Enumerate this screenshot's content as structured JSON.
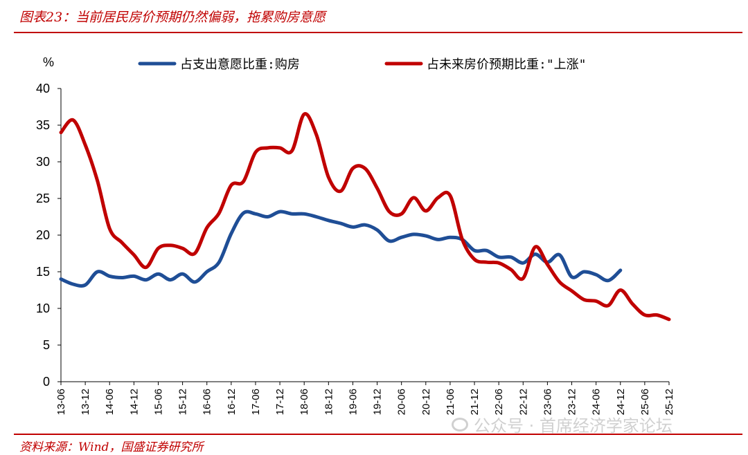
{
  "header": {
    "title": "图表23：当前居民房价预期仍然偏弱，拖累购房意愿"
  },
  "footer": {
    "source": "资料来源：Wind，国盛证券研究所"
  },
  "watermark": {
    "text": "公众号 · 首席经济学家论坛"
  },
  "chart_data": {
    "type": "line",
    "title": "图表23：当前居民房价预期仍然偏弱，拖累购房意愿",
    "ylabel": "%",
    "ylim": [
      0,
      40
    ],
    "yticks": [
      0,
      5,
      10,
      15,
      20,
      25,
      30,
      35,
      40
    ],
    "x_tick_labels": [
      "13-06",
      "13-12",
      "14-06",
      "14-12",
      "15-06",
      "15-12",
      "16-06",
      "16-12",
      "17-06",
      "17-12",
      "18-06",
      "18-12",
      "19-06",
      "19-12",
      "20-06",
      "20-12",
      "21-06",
      "21-12",
      "22-06",
      "22-12",
      "23-06",
      "23-12",
      "24-06",
      "24-12",
      "25-06",
      "25-12"
    ],
    "x_range": [
      0,
      50
    ],
    "legend_position": "top",
    "colors": {
      "blue": "#1f4e96",
      "red": "#c00000"
    },
    "series": [
      {
        "name": "占支出意愿比重:购房",
        "color": "#1f4e96",
        "x": [
          0,
          1,
          2,
          3,
          4,
          5,
          6,
          7,
          8,
          9,
          10,
          11,
          12,
          13,
          14,
          15,
          16,
          17,
          18,
          19,
          20,
          21,
          22,
          23,
          24,
          25,
          26,
          27,
          28,
          29,
          30,
          31,
          32,
          33,
          34,
          35,
          36,
          37,
          38,
          39,
          40,
          41,
          42,
          43,
          44,
          45,
          46
        ],
        "values": [
          14.0,
          13.3,
          13.2,
          15.0,
          14.4,
          14.2,
          14.4,
          13.9,
          14.7,
          13.9,
          14.7,
          13.6,
          15.0,
          16.3,
          20.2,
          23.0,
          22.9,
          22.5,
          23.2,
          22.9,
          22.9,
          22.5,
          22.0,
          21.6,
          21.1,
          21.4,
          20.7,
          19.2,
          19.7,
          20.1,
          19.9,
          19.4,
          19.7,
          19.4,
          17.9,
          17.9,
          17.0,
          17.0,
          16.2,
          17.4,
          16.3,
          17.3,
          14.3,
          15.0,
          14.6,
          13.8,
          15.2
        ]
      },
      {
        "name": "占未来房价预期比重:\"上涨\"",
        "color": "#c00000",
        "x": [
          0,
          1,
          2,
          3,
          4,
          5,
          6,
          7,
          8,
          9,
          10,
          11,
          12,
          13,
          14,
          15,
          16,
          17,
          18,
          19,
          20,
          21,
          22,
          23,
          24,
          25,
          26,
          27,
          28,
          29,
          30,
          31,
          32,
          33,
          34,
          35,
          36,
          37,
          38,
          39,
          40,
          41,
          42,
          43,
          44,
          45,
          46,
          47,
          48,
          49,
          50
        ],
        "values": [
          34.0,
          35.7,
          32.3,
          27.4,
          20.9,
          19.0,
          17.3,
          15.6,
          18.2,
          18.6,
          18.2,
          17.5,
          21.0,
          23.0,
          26.8,
          27.3,
          31.3,
          31.9,
          31.9,
          31.5,
          36.5,
          33.7,
          27.9,
          26.0,
          29.1,
          29.1,
          26.4,
          23.2,
          22.9,
          25.1,
          23.3,
          25.1,
          25.4,
          19.4,
          16.7,
          16.3,
          16.2,
          15.3,
          14.1,
          18.4,
          16.0,
          13.6,
          12.4,
          11.2,
          11.0,
          10.4,
          12.5,
          10.6,
          9.1,
          9.1,
          8.5
        ]
      }
    ]
  }
}
